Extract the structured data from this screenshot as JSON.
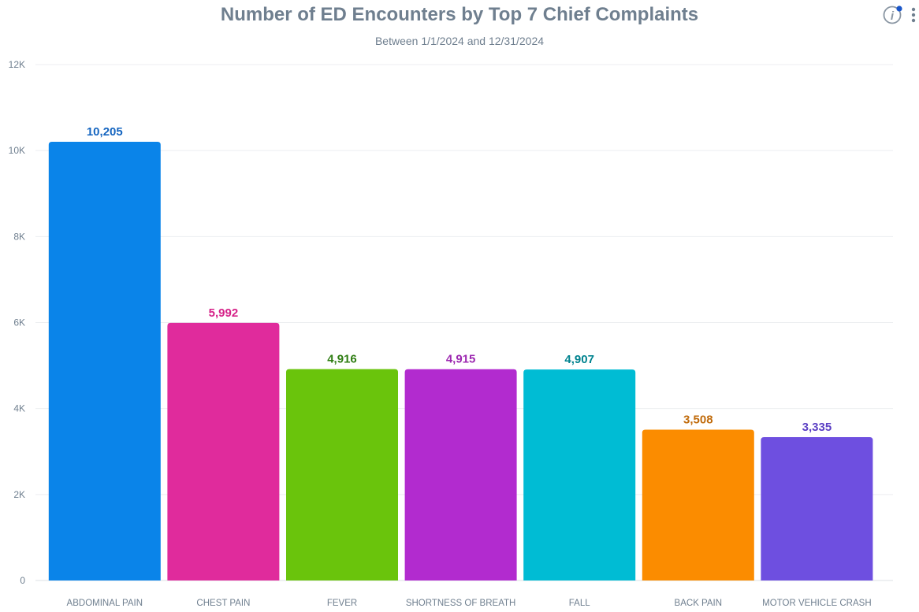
{
  "header": {
    "title": "Number of ED Encounters by Top 7 Chief Complaints",
    "subtitle": "Between 1/1/2024 and 12/31/2024"
  },
  "toolbar": {
    "info_icon": "info-icon",
    "more_icon": "more-vertical-icon",
    "notification_dot_color": "#1a56c9"
  },
  "chart_data": {
    "type": "bar",
    "title": "Number of ED Encounters by Top 7 Chief Complaints",
    "subtitle": "Between 1/1/2024 and 12/31/2024",
    "xlabel": "",
    "ylabel": "",
    "ylim": [
      0,
      12000
    ],
    "grid": true,
    "yticks": [
      {
        "value": 0,
        "label": "0"
      },
      {
        "value": 2000,
        "label": "2K"
      },
      {
        "value": 4000,
        "label": "4K"
      },
      {
        "value": 6000,
        "label": "6K"
      },
      {
        "value": 8000,
        "label": "8K"
      },
      {
        "value": 10000,
        "label": "10K"
      },
      {
        "value": 12000,
        "label": "12K"
      }
    ],
    "categories": [
      "ABDOMINAL PAIN",
      "CHEST PAIN",
      "FEVER",
      "SHORTNESS OF BREATH",
      "FALL",
      "BACK PAIN",
      "MOTOR VEHICLE CRASH"
    ],
    "values": [
      10205,
      5992,
      4916,
      4915,
      4907,
      3508,
      3335
    ],
    "value_labels": [
      "10,205",
      "5,992",
      "4,916",
      "4,915",
      "4,907",
      "3,508",
      "3,335"
    ],
    "colors": [
      "#0a84e9",
      "#e02b9c",
      "#6ac40c",
      "#b22bcf",
      "#00bcd4",
      "#fb8c00",
      "#6e4fe0"
    ],
    "label_colors": [
      "#1565c0",
      "#d62188",
      "#2e7d12",
      "#9c27b0",
      "#00838f",
      "#c06a0a",
      "#5b3fc4"
    ]
  }
}
